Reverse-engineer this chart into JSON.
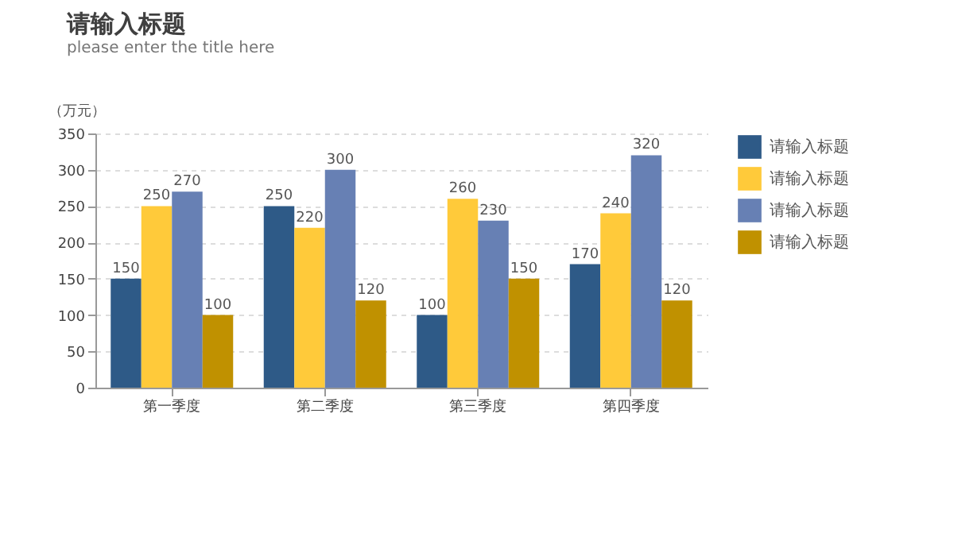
{
  "chart_data": {
    "type": "bar",
    "title": "请输入标题",
    "subtitle": "please enter the title here",
    "ylabel": "（万元）",
    "categories": [
      "第一季度",
      "第二季度",
      "第三季度",
      "第四季度"
    ],
    "series": [
      {
        "name": "请输入标题",
        "color": "#2e5a87",
        "values": [
          150,
          250,
          100,
          170
        ]
      },
      {
        "name": "请输入标题",
        "color": "#ffca3a",
        "values": [
          250,
          220,
          260,
          240
        ]
      },
      {
        "name": "请输入标题",
        "color": "#6780b4",
        "values": [
          270,
          300,
          230,
          320
        ]
      },
      {
        "name": "请输入标题",
        "color": "#c09100",
        "values": [
          100,
          120,
          150,
          120
        ]
      }
    ],
    "ylim": [
      0,
      350
    ],
    "yticks": [
      0,
      50,
      100,
      150,
      200,
      250,
      300,
      350
    ],
    "grid": "y",
    "legend": "right",
    "data_labels": true
  }
}
